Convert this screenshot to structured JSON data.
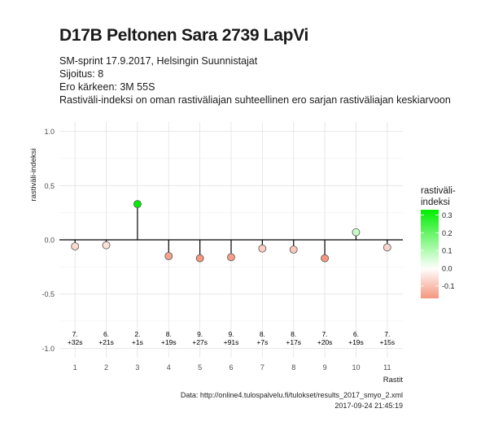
{
  "title": "D17B Peltonen Sara 2739 LapVi",
  "subtitle_lines": [
    "SM-sprint 17.9.2017, Helsingin Suunnistajat",
    "Sijoitus: 8",
    "Ero kärkeen: 3M 55S",
    "Rastiväli-indeksi on oman rastiväliajan suhteellinen ero sarjan rastiväliajan keskiarvoon"
  ],
  "caption_lines": [
    "Data: http://online4.tulospalvelu.fi/tulokset/results_2017_smyo_2.xml",
    "2017-09-24 21:45:19"
  ],
  "chart_data": {
    "type": "scatter",
    "style": "lollipop",
    "x": [
      1,
      2,
      3,
      4,
      5,
      6,
      7,
      8,
      9,
      10,
      11
    ],
    "y": [
      -0.06,
      -0.05,
      0.33,
      -0.15,
      -0.17,
      -0.16,
      -0.08,
      -0.09,
      -0.17,
      0.07,
      -0.07
    ],
    "point_labels": [
      [
        "7.",
        "+32s"
      ],
      [
        "6.",
        "+21s"
      ],
      [
        "2.",
        "+1s"
      ],
      [
        "8.",
        "+19s"
      ],
      [
        "9.",
        "+27s"
      ],
      [
        "9.",
        "+91s"
      ],
      [
        "8.",
        "+7s"
      ],
      [
        "8.",
        "+17s"
      ],
      [
        "7.",
        "+20s"
      ],
      [
        "6.",
        "+19s"
      ],
      [
        "7.",
        "+15s"
      ]
    ],
    "xlabel": "Rastit",
    "ylabel": "rastiväli-indeksi",
    "xticks": [
      "1",
      "2",
      "3",
      "4",
      "5",
      "6",
      "7",
      "8",
      "9",
      "10",
      "11"
    ],
    "yticks": [
      "-1.0",
      "-0.5",
      "0.0",
      "0.5",
      "1.0"
    ],
    "ylim": [
      -1.0,
      1.0
    ],
    "xlim": [
      0.5,
      11.5
    ],
    "grid": true,
    "colorbar": {
      "title_lines": [
        "rastiväli-",
        "indeksi"
      ],
      "ticks": [
        "0.3",
        "0.2",
        "0.1",
        "0.0",
        "-0.1"
      ],
      "range": [
        -0.17,
        0.33
      ],
      "colors": {
        "high": "#00ee00",
        "mid": "#ffffff",
        "low": "#f4977e"
      },
      "placement": "right"
    }
  }
}
